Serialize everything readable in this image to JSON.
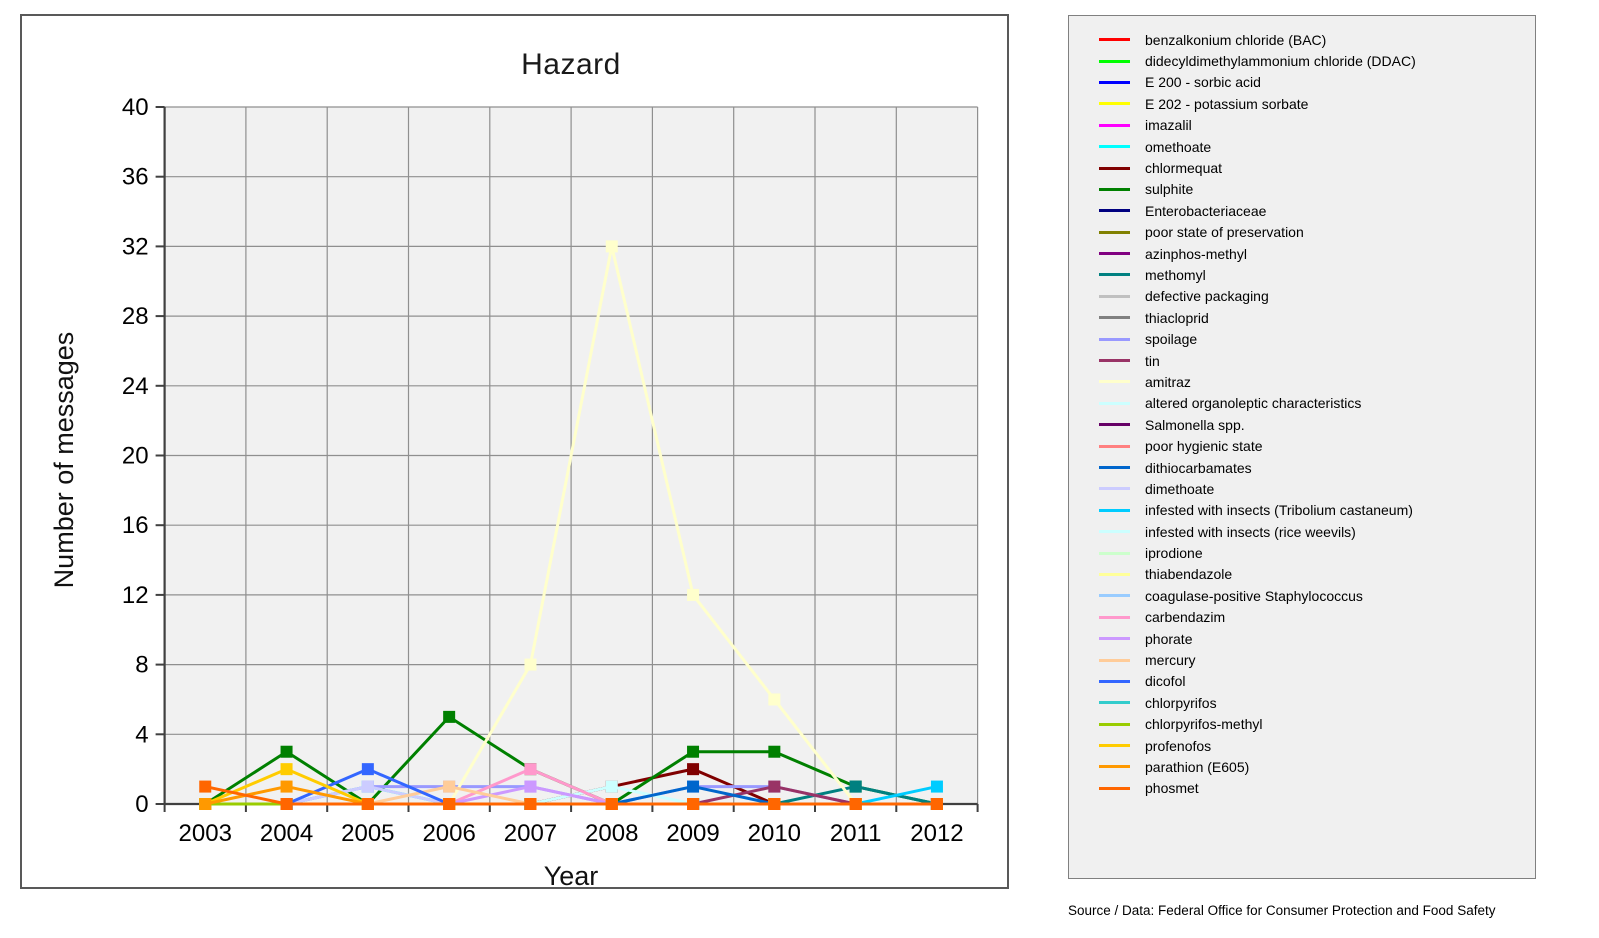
{
  "source_note": "Source / Data: Federal Office for Consumer Protection and Food Safety",
  "chart_data": {
    "type": "line",
    "title": "Hazard",
    "xlabel": "Year",
    "ylabel": "Number of messages",
    "categories": [
      "2003",
      "2004",
      "2005",
      "2006",
      "2007",
      "2008",
      "2009",
      "2010",
      "2011",
      "2012"
    ],
    "ylim": [
      0,
      40
    ],
    "ytick_step": 4,
    "grid": true,
    "marker": "square",
    "legend_position": "right-panel",
    "plot_bg_color": "#f1f1f1",
    "grid_color": "#8f8f8f",
    "axis_color": "#404040",
    "series": [
      {
        "name": "benzalkonium chloride (BAC)",
        "color": "#FF0000",
        "values": [
          0,
          0,
          0,
          0,
          0,
          0,
          0,
          0,
          0,
          0
        ]
      },
      {
        "name": "didecyldimethylammonium chloride (DDAC)",
        "color": "#00FF00",
        "values": [
          0,
          0,
          0,
          0,
          0,
          0,
          0,
          0,
          0,
          0
        ]
      },
      {
        "name": "E 200 - sorbic acid",
        "color": "#0000FF",
        "values": [
          0,
          0,
          0,
          0,
          0,
          0,
          0,
          0,
          0,
          0
        ]
      },
      {
        "name": "E 202 - potassium sorbate",
        "color": "#FFFF00",
        "values": [
          0,
          0,
          0,
          0,
          0,
          0,
          0,
          0,
          0,
          0
        ]
      },
      {
        "name": "imazalil",
        "color": "#FF00FF",
        "values": [
          0,
          0,
          0,
          0,
          0,
          0,
          0,
          0,
          0,
          0
        ]
      },
      {
        "name": "omethoate",
        "color": "#00FFFF",
        "values": [
          0,
          0,
          1,
          0,
          0,
          0,
          0,
          0,
          0,
          0
        ]
      },
      {
        "name": "chlormequat",
        "color": "#800000",
        "values": [
          0,
          0,
          0,
          0,
          0,
          1,
          2,
          0,
          0,
          0
        ]
      },
      {
        "name": "sulphite",
        "color": "#008000",
        "values": [
          0,
          3,
          0,
          5,
          2,
          0,
          3,
          3,
          1,
          0
        ]
      },
      {
        "name": "Enterobacteriaceae",
        "color": "#000080",
        "values": [
          0,
          0,
          0,
          0,
          0,
          0,
          0,
          0,
          0,
          0
        ]
      },
      {
        "name": "poor state of preservation",
        "color": "#808000",
        "values": [
          0,
          0,
          0,
          0,
          0,
          0,
          0,
          0,
          0,
          0
        ]
      },
      {
        "name": "azinphos-methyl",
        "color": "#800080",
        "values": [
          0,
          0,
          0,
          0,
          0,
          0,
          0,
          0,
          0,
          0
        ]
      },
      {
        "name": "methomyl",
        "color": "#008080",
        "values": [
          0,
          0,
          0,
          0,
          0,
          0,
          0,
          0,
          1,
          0
        ]
      },
      {
        "name": "defective packaging",
        "color": "#C0C0C0",
        "values": [
          0,
          0,
          0,
          0,
          0,
          0,
          0,
          0,
          0,
          0
        ]
      },
      {
        "name": "thiacloprid",
        "color": "#808080",
        "values": [
          0,
          0,
          0,
          0,
          0,
          0,
          0,
          0,
          0,
          0
        ]
      },
      {
        "name": "spoilage",
        "color": "#9999FF",
        "values": [
          0,
          0,
          1,
          1,
          1,
          0,
          1,
          1,
          0,
          0
        ]
      },
      {
        "name": "tin",
        "color": "#993366",
        "values": [
          0,
          0,
          0,
          0,
          0,
          0,
          0,
          1,
          0,
          0
        ]
      },
      {
        "name": "amitraz",
        "color": "#FFFFCC",
        "values": [
          0,
          0,
          0,
          0,
          8,
          32,
          12,
          6,
          0,
          0
        ]
      },
      {
        "name": "altered organoleptic characteristics",
        "color": "#CCFFFF",
        "values": [
          0,
          0,
          0,
          0,
          0,
          1,
          0,
          0,
          0,
          0
        ]
      },
      {
        "name": "Salmonella spp.",
        "color": "#660066",
        "values": [
          0,
          0,
          0,
          0,
          0,
          0,
          0,
          0,
          0,
          0
        ]
      },
      {
        "name": "poor hygienic state",
        "color": "#FF8080",
        "values": [
          0,
          0,
          0,
          0,
          0,
          0,
          0,
          0,
          0,
          0
        ]
      },
      {
        "name": "dithiocarbamates",
        "color": "#0066CC",
        "values": [
          0,
          0,
          0,
          0,
          0,
          0,
          1,
          0,
          0,
          0
        ]
      },
      {
        "name": "dimethoate",
        "color": "#CCCCFF",
        "values": [
          0,
          0,
          1,
          0,
          0,
          0,
          0,
          0,
          0,
          0
        ]
      },
      {
        "name": "infested with insects (Tribolium castaneum)",
        "color": "#00CCFF",
        "values": [
          0,
          0,
          0,
          0,
          0,
          0,
          0,
          0,
          0,
          1
        ]
      },
      {
        "name": "infested with insects (rice weevils)",
        "color": "#CCFFFF",
        "values": [
          0,
          0,
          0,
          0,
          0,
          0,
          0,
          0,
          0,
          0
        ]
      },
      {
        "name": "iprodione",
        "color": "#CCFFCC",
        "values": [
          0,
          0,
          0,
          0,
          0,
          0,
          0,
          0,
          0,
          0
        ]
      },
      {
        "name": "thiabendazole",
        "color": "#FFFF99",
        "values": [
          0,
          0,
          0,
          0,
          0,
          0,
          0,
          0,
          0,
          0
        ]
      },
      {
        "name": "coagulase-positive Staphylococcus",
        "color": "#99CCFF",
        "values": [
          0,
          0,
          0,
          0,
          0,
          0,
          0,
          0,
          0,
          0
        ]
      },
      {
        "name": "carbendazim",
        "color": "#FF99CC",
        "values": [
          0,
          0,
          0,
          0,
          2,
          0,
          0,
          0,
          0,
          0
        ]
      },
      {
        "name": "phorate",
        "color": "#CC99FF",
        "values": [
          0,
          0,
          0,
          0,
          1,
          0,
          0,
          0,
          0,
          0
        ]
      },
      {
        "name": "mercury",
        "color": "#FFCC99",
        "values": [
          0,
          0,
          0,
          1,
          0,
          0,
          0,
          0,
          0,
          0
        ]
      },
      {
        "name": "dicofol",
        "color": "#3366FF",
        "values": [
          0,
          0,
          2,
          0,
          0,
          0,
          0,
          0,
          0,
          0
        ]
      },
      {
        "name": "chlorpyrifos",
        "color": "#33CCCC",
        "values": [
          0,
          0,
          0,
          0,
          0,
          0,
          0,
          0,
          0,
          0
        ]
      },
      {
        "name": "chlorpyrifos-methyl",
        "color": "#99CC00",
        "values": [
          0,
          0,
          0,
          0,
          0,
          0,
          0,
          0,
          0,
          0
        ]
      },
      {
        "name": "profenofos",
        "color": "#FFCC00",
        "values": [
          0,
          2,
          0,
          0,
          0,
          0,
          0,
          0,
          0,
          0
        ]
      },
      {
        "name": "parathion (E605)",
        "color": "#FF9900",
        "values": [
          0,
          1,
          0,
          0,
          0,
          0,
          0,
          0,
          0,
          0
        ]
      },
      {
        "name": "phosmet",
        "color": "#FF6600",
        "values": [
          1,
          0,
          0,
          0,
          0,
          0,
          0,
          0,
          0,
          0
        ]
      }
    ]
  }
}
